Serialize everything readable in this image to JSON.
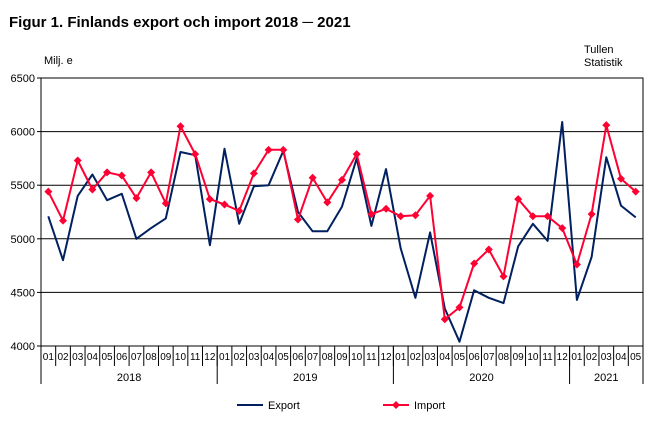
{
  "title": "Figur 1. Finlands export och import 2018 ─ 2021",
  "unit": "Milj. e",
  "source": [
    "Tullen",
    "Statistik"
  ],
  "colors": {
    "export": "#002060",
    "import": "#ff0033",
    "grid": "#000000"
  },
  "chart_data": {
    "type": "line",
    "ylim": [
      4000,
      6500
    ],
    "yticks": [
      4000,
      4500,
      5000,
      5500,
      6000,
      6500
    ],
    "grid": true,
    "legend_position": "bottom",
    "months": [
      "01",
      "02",
      "03",
      "04",
      "05",
      "06",
      "07",
      "08",
      "09",
      "10",
      "11",
      "12",
      "01",
      "02",
      "03",
      "04",
      "05",
      "06",
      "07",
      "08",
      "09",
      "10",
      "11",
      "12",
      "01",
      "02",
      "03",
      "04",
      "05",
      "06",
      "07",
      "08",
      "09",
      "10",
      "11",
      "12",
      "01",
      "02",
      "03",
      "04",
      "05"
    ],
    "years": [
      {
        "label": "2018",
        "start": 0,
        "count": 12
      },
      {
        "label": "2019",
        "start": 12,
        "count": 12
      },
      {
        "label": "2020",
        "start": 24,
        "count": 12
      },
      {
        "label": "2021",
        "start": 36,
        "count": 5
      }
    ],
    "series": [
      {
        "name": "Export",
        "color": "#002060",
        "marker": "none",
        "values": [
          5210,
          4800,
          5400,
          5600,
          5360,
          5420,
          5000,
          5100,
          5190,
          5810,
          5780,
          4940,
          5840,
          5140,
          5490,
          5500,
          5820,
          5250,
          5070,
          5070,
          5300,
          5750,
          5120,
          5650,
          4910,
          4450,
          5060,
          4350,
          4040,
          4520,
          4450,
          4400,
          4930,
          5140,
          4980,
          6090,
          4430,
          4830,
          5760,
          5310,
          5200
        ]
      },
      {
        "name": "Import",
        "color": "#ff0033",
        "marker": "diamond",
        "values": [
          5440,
          5170,
          5730,
          5460,
          5620,
          5590,
          5380,
          5620,
          5330,
          6050,
          5790,
          5370,
          5320,
          5260,
          5610,
          5830,
          5830,
          5180,
          5570,
          5340,
          5550,
          5790,
          5230,
          5280,
          5210,
          5220,
          5400,
          4250,
          4360,
          4770,
          4900,
          4650,
          5370,
          5210,
          5210,
          5100,
          4760,
          5230,
          6060,
          5560,
          5440
        ]
      }
    ]
  }
}
